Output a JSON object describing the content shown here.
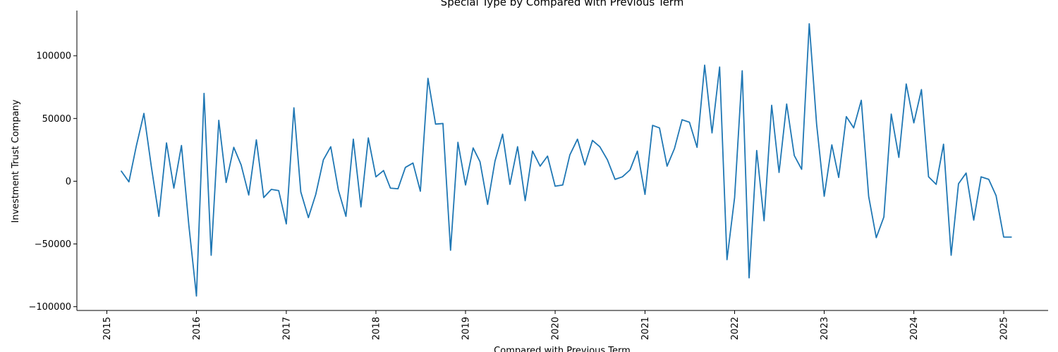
{
  "chart_data": {
    "type": "line",
    "title": "Special Type by Compared with Previous Term",
    "xlabel": "Compared with Previous Term",
    "ylabel": "Investment Trust Company",
    "x_range": [
      "2014-09-01",
      "2025-07-01"
    ],
    "ylim": [
      -103000,
      136000
    ],
    "x_ticks": [
      {
        "date": "2015-01-01",
        "label": "2015"
      },
      {
        "date": "2016-01-01",
        "label": "2016"
      },
      {
        "date": "2017-01-01",
        "label": "2017"
      },
      {
        "date": "2018-01-01",
        "label": "2018"
      },
      {
        "date": "2019-01-01",
        "label": "2019"
      },
      {
        "date": "2020-01-01",
        "label": "2020"
      },
      {
        "date": "2021-01-01",
        "label": "2021"
      },
      {
        "date": "2022-01-01",
        "label": "2022"
      },
      {
        "date": "2023-01-01",
        "label": "2023"
      },
      {
        "date": "2024-01-01",
        "label": "2024"
      },
      {
        "date": "2025-01-01",
        "label": "2025"
      }
    ],
    "y_ticks": [
      {
        "value": 100000,
        "label": "100000"
      },
      {
        "value": 50000,
        "label": "50000"
      },
      {
        "value": 0,
        "label": "0"
      },
      {
        "value": -50000,
        "label": "−50000"
      },
      {
        "value": -100000,
        "label": "−100000"
      }
    ],
    "grid": false,
    "legend": "none",
    "series_color": "#1f77b4",
    "series": [
      {
        "x": [
          "2015-03",
          "2015-04",
          "2015-05",
          "2015-06",
          "2015-07",
          "2015-08",
          "2015-09",
          "2015-10",
          "2015-11",
          "2015-12",
          "2016-01",
          "2016-02",
          "2016-03",
          "2016-04",
          "2016-05",
          "2016-06",
          "2016-07",
          "2016-08",
          "2016-09",
          "2016-10",
          "2016-11",
          "2016-12",
          "2017-01",
          "2017-02",
          "2017-03",
          "2017-04",
          "2017-05",
          "2017-06",
          "2017-07",
          "2017-08",
          "2017-09",
          "2017-10",
          "2017-11",
          "2017-12",
          "2018-01",
          "2018-02",
          "2018-03",
          "2018-04",
          "2018-05",
          "2018-06",
          "2018-07",
          "2018-08",
          "2018-09",
          "2018-10",
          "2018-11",
          "2018-12",
          "2019-01",
          "2019-02",
          "2019-03",
          "2019-04",
          "2019-05",
          "2019-06",
          "2019-07",
          "2019-08",
          "2019-09",
          "2019-10",
          "2019-11",
          "2019-12",
          "2020-01",
          "2020-02",
          "2020-03",
          "2020-04",
          "2020-05",
          "2020-06",
          "2020-07",
          "2020-08",
          "2020-09",
          "2020-10",
          "2020-11",
          "2020-12",
          "2021-01",
          "2021-02",
          "2021-03",
          "2021-04",
          "2021-05",
          "2021-06",
          "2021-07",
          "2021-08",
          "2021-09",
          "2021-10",
          "2021-11",
          "2021-12",
          "2022-01",
          "2022-02",
          "2022-03",
          "2022-04",
          "2022-05",
          "2022-06",
          "2022-07",
          "2022-08",
          "2022-09",
          "2022-10",
          "2022-11",
          "2022-12",
          "2023-01",
          "2023-02",
          "2023-03",
          "2023-04",
          "2023-05",
          "2023-06",
          "2023-07",
          "2023-08",
          "2023-09",
          "2023-10",
          "2023-11",
          "2023-12",
          "2024-01",
          "2024-02",
          "2024-03",
          "2024-04",
          "2024-05",
          "2024-06",
          "2024-07",
          "2024-08",
          "2024-09",
          "2024-10",
          "2024-11",
          "2024-12",
          "2025-01",
          "2025-02"
        ],
        "y": [
          8000,
          -500,
          28000,
          54000,
          12000,
          -28000,
          30500,
          -5500,
          28500,
          -35000,
          -91500,
          70000,
          -59000,
          48500,
          -1000,
          27000,
          13000,
          -11000,
          33000,
          -13000,
          -6500,
          -7500,
          -34000,
          58500,
          -8500,
          -29000,
          -10500,
          17000,
          27500,
          -7000,
          -28000,
          33500,
          -20500,
          34500,
          3500,
          8500,
          -5500,
          -6000,
          11000,
          14500,
          -8000,
          82000,
          45500,
          46000,
          -55000,
          31000,
          -3000,
          26500,
          15500,
          -18500,
          16000,
          37500,
          -2500,
          27500,
          -15500,
          24000,
          12000,
          20000,
          -4000,
          -3000,
          21000,
          33500,
          13000,
          32500,
          27500,
          17000,
          1500,
          3500,
          9000,
          24000,
          -10500,
          44500,
          42500,
          12000,
          26000,
          49000,
          47000,
          27000,
          92500,
          38500,
          91000,
          -62500,
          -13000,
          88000,
          -77000,
          24500,
          -31500,
          60500,
          7000,
          61500,
          20500,
          9500,
          125500,
          45500,
          -12000,
          29000,
          3000,
          51500,
          42500,
          64500,
          -12000,
          -45000,
          -28500,
          53500,
          19000,
          77500,
          46500,
          73000,
          3500,
          -2500,
          29500,
          -59000,
          -2000,
          6500,
          -31000,
          3500,
          1500,
          -11500,
          -44500,
          -44500
        ]
      }
    ]
  }
}
